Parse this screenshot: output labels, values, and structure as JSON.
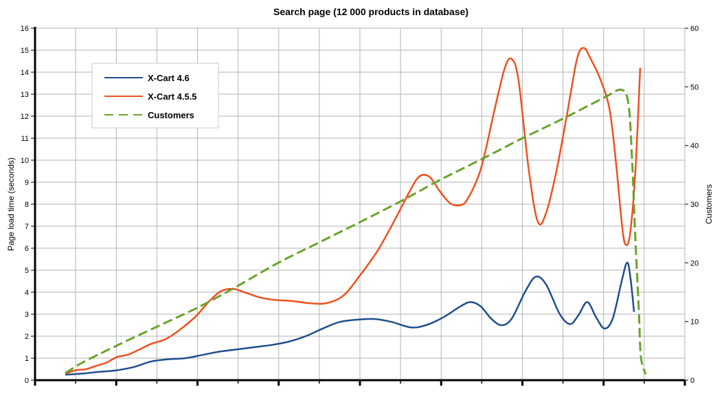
{
  "chart_data": {
    "type": "line",
    "title": "Search page (12 000 products in database)",
    "ylabel": "Page load time (seconds)",
    "y2label": "Customers",
    "ylim": [
      0,
      16
    ],
    "y2lim": [
      0,
      60
    ],
    "y_ticks": [
      "0",
      "1",
      "2",
      "3",
      "4",
      "5",
      "6",
      "7",
      "8",
      "9",
      "10",
      "11",
      "12",
      "13",
      "14",
      "15",
      "16"
    ],
    "y2_ticks": [
      "0",
      "10",
      "20",
      "30",
      "40",
      "50",
      "60"
    ],
    "x_tick_count": 8,
    "grid": true,
    "legend_position": "top-left",
    "series": [
      {
        "name": "X-Cart 4.6",
        "axis": "left",
        "color": "#1f4e8c",
        "style": "solid",
        "points": [
          [
            95,
            0.25
          ],
          [
            120,
            0.3
          ],
          [
            145,
            0.38
          ],
          [
            170,
            0.45
          ],
          [
            195,
            0.6
          ],
          [
            220,
            0.85
          ],
          [
            245,
            0.95
          ],
          [
            270,
            1.0
          ],
          [
            295,
            1.15
          ],
          [
            320,
            1.3
          ],
          [
            345,
            1.4
          ],
          [
            370,
            1.5
          ],
          [
            395,
            1.6
          ],
          [
            420,
            1.75
          ],
          [
            445,
            2.0
          ],
          [
            470,
            2.35
          ],
          [
            495,
            2.65
          ],
          [
            520,
            2.75
          ],
          [
            545,
            2.78
          ],
          [
            570,
            2.65
          ],
          [
            598,
            2.4
          ],
          [
            620,
            2.5
          ],
          [
            645,
            2.85
          ],
          [
            670,
            3.35
          ],
          [
            685,
            3.55
          ],
          [
            700,
            3.35
          ],
          [
            715,
            2.8
          ],
          [
            730,
            2.5
          ],
          [
            745,
            2.8
          ],
          [
            765,
            4.05
          ],
          [
            780,
            4.7
          ],
          [
            795,
            4.35
          ],
          [
            815,
            3.0
          ],
          [
            830,
            2.55
          ],
          [
            842,
            2.95
          ],
          [
            855,
            3.55
          ],
          [
            868,
            2.85
          ],
          [
            880,
            2.35
          ],
          [
            892,
            2.8
          ],
          [
            905,
            4.5
          ],
          [
            913,
            5.35
          ],
          [
            918,
            4.6
          ],
          [
            923,
            3.1
          ]
        ]
      },
      {
        "name": "X-Cart 4.5.5",
        "axis": "left",
        "color": "#f0501e",
        "style": "solid",
        "points": [
          [
            95,
            0.3
          ],
          [
            110,
            0.45
          ],
          [
            125,
            0.5
          ],
          [
            140,
            0.65
          ],
          [
            155,
            0.8
          ],
          [
            170,
            1.05
          ],
          [
            185,
            1.15
          ],
          [
            200,
            1.35
          ],
          [
            220,
            1.65
          ],
          [
            240,
            1.85
          ],
          [
            260,
            2.25
          ],
          [
            285,
            2.9
          ],
          [
            305,
            3.6
          ],
          [
            322,
            4.05
          ],
          [
            340,
            4.15
          ],
          [
            360,
            3.95
          ],
          [
            380,
            3.75
          ],
          [
            400,
            3.65
          ],
          [
            425,
            3.6
          ],
          [
            450,
            3.5
          ],
          [
            475,
            3.5
          ],
          [
            500,
            3.85
          ],
          [
            525,
            4.8
          ],
          [
            550,
            5.9
          ],
          [
            575,
            7.3
          ],
          [
            595,
            8.5
          ],
          [
            610,
            9.25
          ],
          [
            625,
            9.25
          ],
          [
            640,
            8.6
          ],
          [
            655,
            8.05
          ],
          [
            668,
            7.95
          ],
          [
            680,
            8.2
          ],
          [
            700,
            9.6
          ],
          [
            720,
            12.3
          ],
          [
            735,
            14.2
          ],
          [
            745,
            14.6
          ],
          [
            755,
            13.6
          ],
          [
            770,
            9.5
          ],
          [
            783,
            7.2
          ],
          [
            795,
            7.6
          ],
          [
            810,
            9.5
          ],
          [
            825,
            12.0
          ],
          [
            840,
            14.6
          ],
          [
            850,
            15.1
          ],
          [
            860,
            14.6
          ],
          [
            875,
            13.6
          ],
          [
            888,
            12.2
          ],
          [
            898,
            9.5
          ],
          [
            905,
            7.2
          ],
          [
            910,
            6.2
          ],
          [
            917,
            6.6
          ],
          [
            925,
            9.5
          ],
          [
            932,
            14.2
          ]
        ]
      },
      {
        "name": "Customers",
        "axis": "right",
        "color": "#6aa32a",
        "style": "dashed",
        "points": [
          [
            95,
            1.2
          ],
          [
            120,
            3
          ],
          [
            170,
            5.9
          ],
          [
            230,
            9.2
          ],
          [
            290,
            12.5
          ],
          [
            345,
            16
          ],
          [
            405,
            20
          ],
          [
            465,
            23.5
          ],
          [
            525,
            27
          ],
          [
            585,
            30.6
          ],
          [
            640,
            34.1
          ],
          [
            700,
            37.6
          ],
          [
            760,
            41.2
          ],
          [
            820,
            44.6
          ],
          [
            880,
            48.2
          ],
          [
            905,
            49.5
          ],
          [
            915,
            47
          ],
          [
            920,
            38
          ],
          [
            925,
            24
          ],
          [
            930,
            12
          ],
          [
            933,
            4
          ],
          [
            940,
            1
          ]
        ]
      }
    ]
  }
}
